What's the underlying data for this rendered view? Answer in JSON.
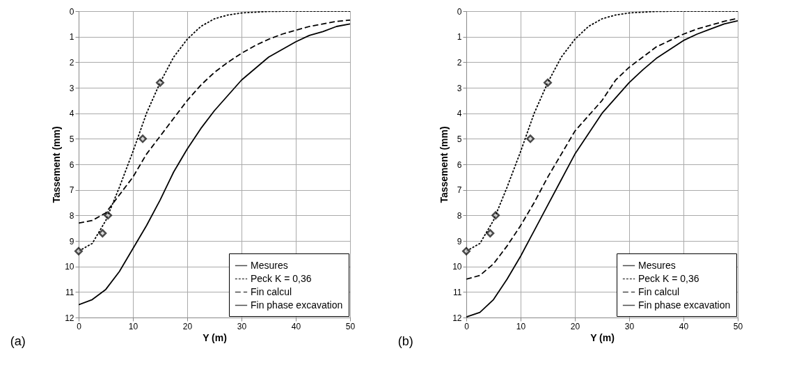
{
  "chart_data": [
    {
      "type": "line",
      "annotations": [
        "(a)"
      ],
      "xlabel": "Y (m)",
      "ylabel": "Tassement (mm)",
      "xlim": [
        0,
        50
      ],
      "ylim": [
        12,
        0
      ],
      "xticks": [
        0,
        10,
        20,
        30,
        40,
        50
      ],
      "yticks": [
        0,
        1,
        2,
        3,
        4,
        5,
        6,
        7,
        8,
        9,
        10,
        11,
        12
      ],
      "grid": true,
      "legend": "bottom right",
      "series": [
        {
          "name": "Mesures",
          "type": "scatter",
          "marker": "diamond",
          "color": "#000000",
          "x": [
            0,
            4.4,
            5.4,
            11.8,
            15
          ],
          "values": [
            9.4,
            8.7,
            8.0,
            5.0,
            2.8
          ]
        },
        {
          "name": "Peck K = 0,36",
          "type": "line",
          "line_style": "dotted",
          "color": "#000000",
          "x": [
            0,
            2.5,
            5,
            7.5,
            10,
            12.5,
            15,
            17.5,
            20,
            22.5,
            25,
            27.5,
            30,
            35,
            40,
            50
          ],
          "values": [
            9.4,
            9.1,
            8.2,
            6.9,
            5.5,
            4.0,
            2.8,
            1.8,
            1.1,
            0.6,
            0.3,
            0.15,
            0.07,
            0.01,
            0,
            0
          ]
        },
        {
          "name": "Fin calcul",
          "type": "line",
          "line_style": "dashed",
          "color": "#000000",
          "x": [
            0,
            2.5,
            5,
            7.5,
            10,
            12.5,
            15,
            17.5,
            20,
            22.5,
            25,
            27.5,
            30,
            32.5,
            35,
            37.5,
            40,
            42.5,
            45,
            47.5,
            50
          ],
          "values": [
            8.3,
            8.2,
            7.9,
            7.2,
            6.5,
            5.6,
            4.9,
            4.2,
            3.5,
            2.9,
            2.4,
            2.0,
            1.65,
            1.35,
            1.1,
            0.9,
            0.75,
            0.6,
            0.5,
            0.4,
            0.35
          ]
        },
        {
          "name": "Fin phase excavation",
          "type": "line",
          "line_style": "solid",
          "color": "#000000",
          "x": [
            0,
            2.5,
            5,
            7.5,
            10,
            12.5,
            15,
            17.5,
            20,
            22.5,
            25,
            27.5,
            30,
            32.5,
            35,
            37.5,
            40,
            42.5,
            45,
            47.5,
            50
          ],
          "values": [
            11.5,
            11.3,
            10.9,
            10.2,
            9.3,
            8.4,
            7.4,
            6.3,
            5.4,
            4.6,
            3.9,
            3.3,
            2.7,
            2.25,
            1.8,
            1.5,
            1.2,
            0.95,
            0.8,
            0.6,
            0.5
          ]
        }
      ]
    },
    {
      "type": "line",
      "annotations": [
        "(b)"
      ],
      "xlabel": "Y (m)",
      "ylabel": "Tassement (mm)",
      "xlim": [
        0,
        50
      ],
      "ylim": [
        12,
        0
      ],
      "xticks": [
        0,
        10,
        20,
        30,
        40,
        50
      ],
      "yticks": [
        0,
        1,
        2,
        3,
        4,
        5,
        6,
        7,
        8,
        9,
        10,
        11,
        12
      ],
      "grid": true,
      "legend": "bottom right",
      "series": [
        {
          "name": "Mesures",
          "type": "scatter",
          "marker": "diamond",
          "color": "#000000",
          "x": [
            0,
            4.4,
            5.4,
            11.8,
            15
          ],
          "values": [
            9.4,
            8.7,
            8.0,
            5.0,
            2.8
          ]
        },
        {
          "name": "Peck K = 0,36",
          "type": "line",
          "line_style": "dotted",
          "color": "#000000",
          "x": [
            0,
            2.5,
            5,
            7.5,
            10,
            12.5,
            15,
            17.5,
            20,
            22.5,
            25,
            27.5,
            30,
            35,
            40,
            50
          ],
          "values": [
            9.4,
            9.1,
            8.2,
            6.9,
            5.5,
            4.0,
            2.8,
            1.8,
            1.1,
            0.6,
            0.3,
            0.15,
            0.07,
            0.01,
            0,
            0
          ]
        },
        {
          "name": "Fin calcul",
          "type": "line",
          "line_style": "dashed",
          "color": "#000000",
          "x": [
            0,
            2.5,
            5,
            7.5,
            10,
            12.5,
            15,
            17.5,
            20,
            22.5,
            25,
            27.5,
            30,
            32.5,
            35,
            37.5,
            40,
            42.5,
            45,
            47.5,
            50
          ],
          "values": [
            10.5,
            10.35,
            9.9,
            9.2,
            8.4,
            7.5,
            6.5,
            5.6,
            4.7,
            4.1,
            3.5,
            2.7,
            2.2,
            1.8,
            1.4,
            1.15,
            0.9,
            0.7,
            0.55,
            0.4,
            0.28
          ]
        },
        {
          "name": "Fin phase excavation",
          "type": "line",
          "line_style": "solid",
          "color": "#000000",
          "x": [
            0,
            2.5,
            5,
            7.5,
            10,
            12.5,
            15,
            17.5,
            20,
            22.5,
            25,
            27.5,
            30,
            32.5,
            35,
            37.5,
            40,
            42.5,
            45,
            47.5,
            50
          ],
          "values": [
            11.98,
            11.8,
            11.3,
            10.5,
            9.6,
            8.6,
            7.6,
            6.6,
            5.6,
            4.8,
            4.0,
            3.4,
            2.8,
            2.3,
            1.85,
            1.5,
            1.15,
            0.9,
            0.7,
            0.5,
            0.38
          ]
        }
      ]
    }
  ]
}
